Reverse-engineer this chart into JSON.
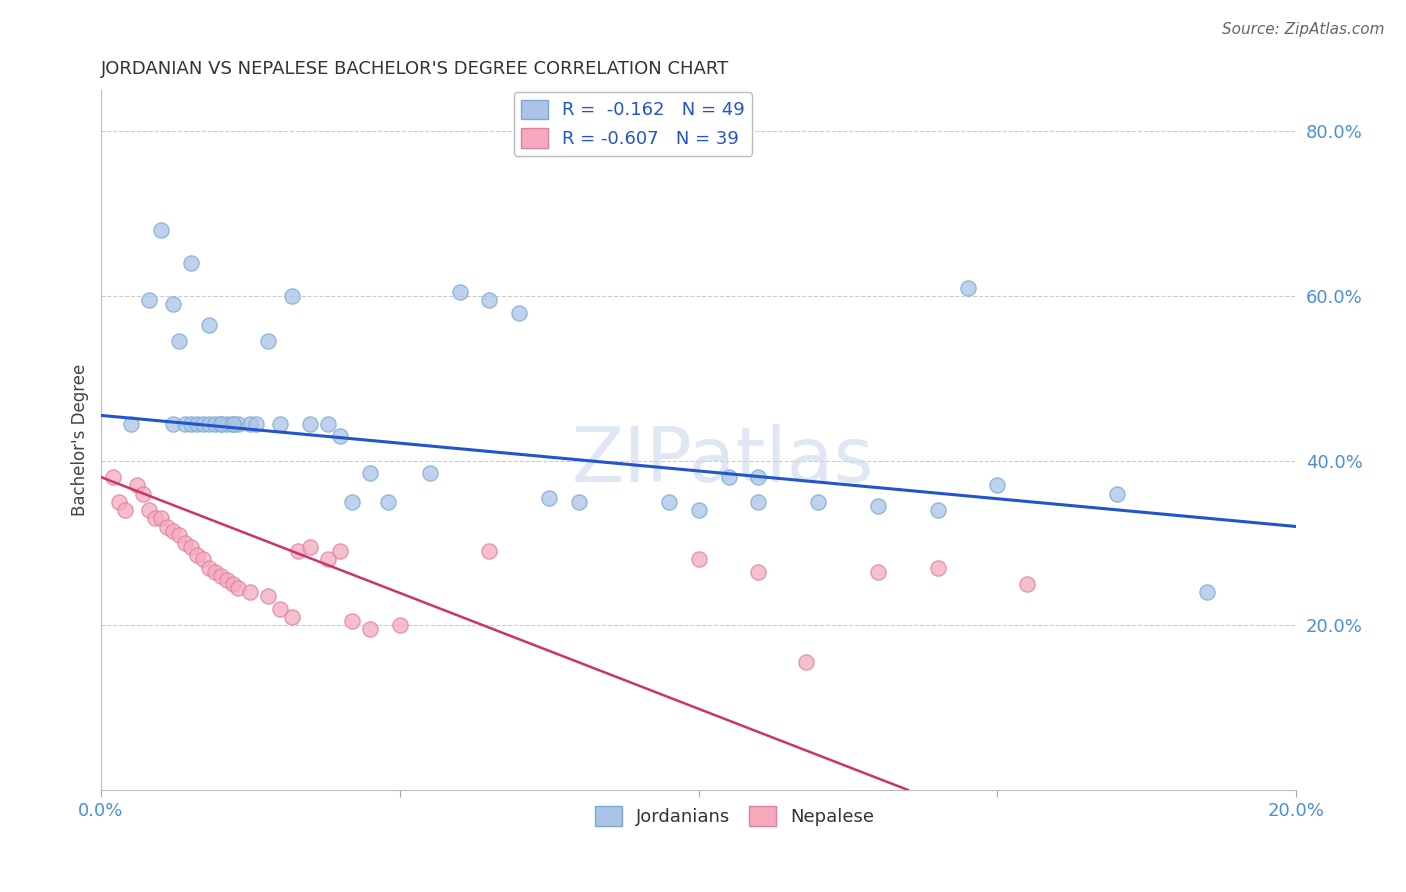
{
  "title": "JORDANIAN VS NEPALESE BACHELOR'S DEGREE CORRELATION CHART",
  "source": "Source: ZipAtlas.com",
  "ylabel": "Bachelor's Degree",
  "watermark": "ZIPatlas",
  "blue_R": -0.162,
  "blue_N": 49,
  "pink_R": -0.607,
  "pink_N": 39,
  "blue_color": "#aac4e8",
  "pink_color": "#f4aabb",
  "blue_edge_color": "#7aaad0",
  "pink_edge_color": "#e080a0",
  "blue_line_color": "#2255cc",
  "pink_line_color": "#cc3366",
  "title_color": "#333333",
  "legend_color": "#2255cc",
  "axis_tick_color": "#4a90d9",
  "xmin": 0.0,
  "xmax": 0.2,
  "ymin": 0.0,
  "ymax": 0.85,
  "xticks": [
    0.0,
    0.05,
    0.1,
    0.15,
    0.2
  ],
  "xtick_labels": [
    "0.0%",
    "",
    "",
    "",
    "20.0%"
  ],
  "ytick_positions": [
    0.0,
    0.2,
    0.4,
    0.6,
    0.8
  ],
  "ytick_labels": [
    "",
    "20.0%",
    "40.0%",
    "60.0%",
    "80.0%"
  ],
  "dot_size": 120,
  "blue_line_x": [
    0.0,
    0.2
  ],
  "blue_line_y": [
    0.455,
    0.32
  ],
  "pink_line_x": [
    0.0,
    0.135
  ],
  "pink_line_y": [
    0.38,
    0.0
  ],
  "blue_x": [
    0.005,
    0.008,
    0.01,
    0.012,
    0.012,
    0.013,
    0.014,
    0.015,
    0.016,
    0.017,
    0.018,
    0.019,
    0.02,
    0.021,
    0.022,
    0.023,
    0.025,
    0.026,
    0.028,
    0.03,
    0.032,
    0.015,
    0.018,
    0.02,
    0.022,
    0.035,
    0.038,
    0.04,
    0.042,
    0.045,
    0.048,
    0.055,
    0.06,
    0.065,
    0.07,
    0.075,
    0.08,
    0.095,
    0.1,
    0.105,
    0.11,
    0.11,
    0.12,
    0.13,
    0.14,
    0.145,
    0.15,
    0.17,
    0.185
  ],
  "blue_y": [
    0.445,
    0.595,
    0.68,
    0.445,
    0.59,
    0.545,
    0.445,
    0.445,
    0.445,
    0.445,
    0.445,
    0.445,
    0.445,
    0.445,
    0.445,
    0.445,
    0.445,
    0.445,
    0.545,
    0.445,
    0.6,
    0.64,
    0.565,
    0.445,
    0.445,
    0.445,
    0.445,
    0.43,
    0.35,
    0.385,
    0.35,
    0.385,
    0.605,
    0.595,
    0.58,
    0.355,
    0.35,
    0.35,
    0.34,
    0.38,
    0.35,
    0.38,
    0.35,
    0.345,
    0.34,
    0.61,
    0.37,
    0.36,
    0.24
  ],
  "pink_x": [
    0.002,
    0.003,
    0.004,
    0.006,
    0.007,
    0.008,
    0.009,
    0.01,
    0.011,
    0.012,
    0.013,
    0.014,
    0.015,
    0.016,
    0.017,
    0.018,
    0.019,
    0.02,
    0.021,
    0.022,
    0.023,
    0.025,
    0.028,
    0.03,
    0.032,
    0.033,
    0.035,
    0.038,
    0.04,
    0.042,
    0.045,
    0.05,
    0.065,
    0.1,
    0.11,
    0.118,
    0.13,
    0.14,
    0.155
  ],
  "pink_y": [
    0.38,
    0.35,
    0.34,
    0.37,
    0.36,
    0.34,
    0.33,
    0.33,
    0.32,
    0.315,
    0.31,
    0.3,
    0.295,
    0.285,
    0.28,
    0.27,
    0.265,
    0.26,
    0.255,
    0.25,
    0.245,
    0.24,
    0.235,
    0.22,
    0.21,
    0.29,
    0.295,
    0.28,
    0.29,
    0.205,
    0.195,
    0.2,
    0.29,
    0.28,
    0.265,
    0.155,
    0.265,
    0.27,
    0.25
  ]
}
